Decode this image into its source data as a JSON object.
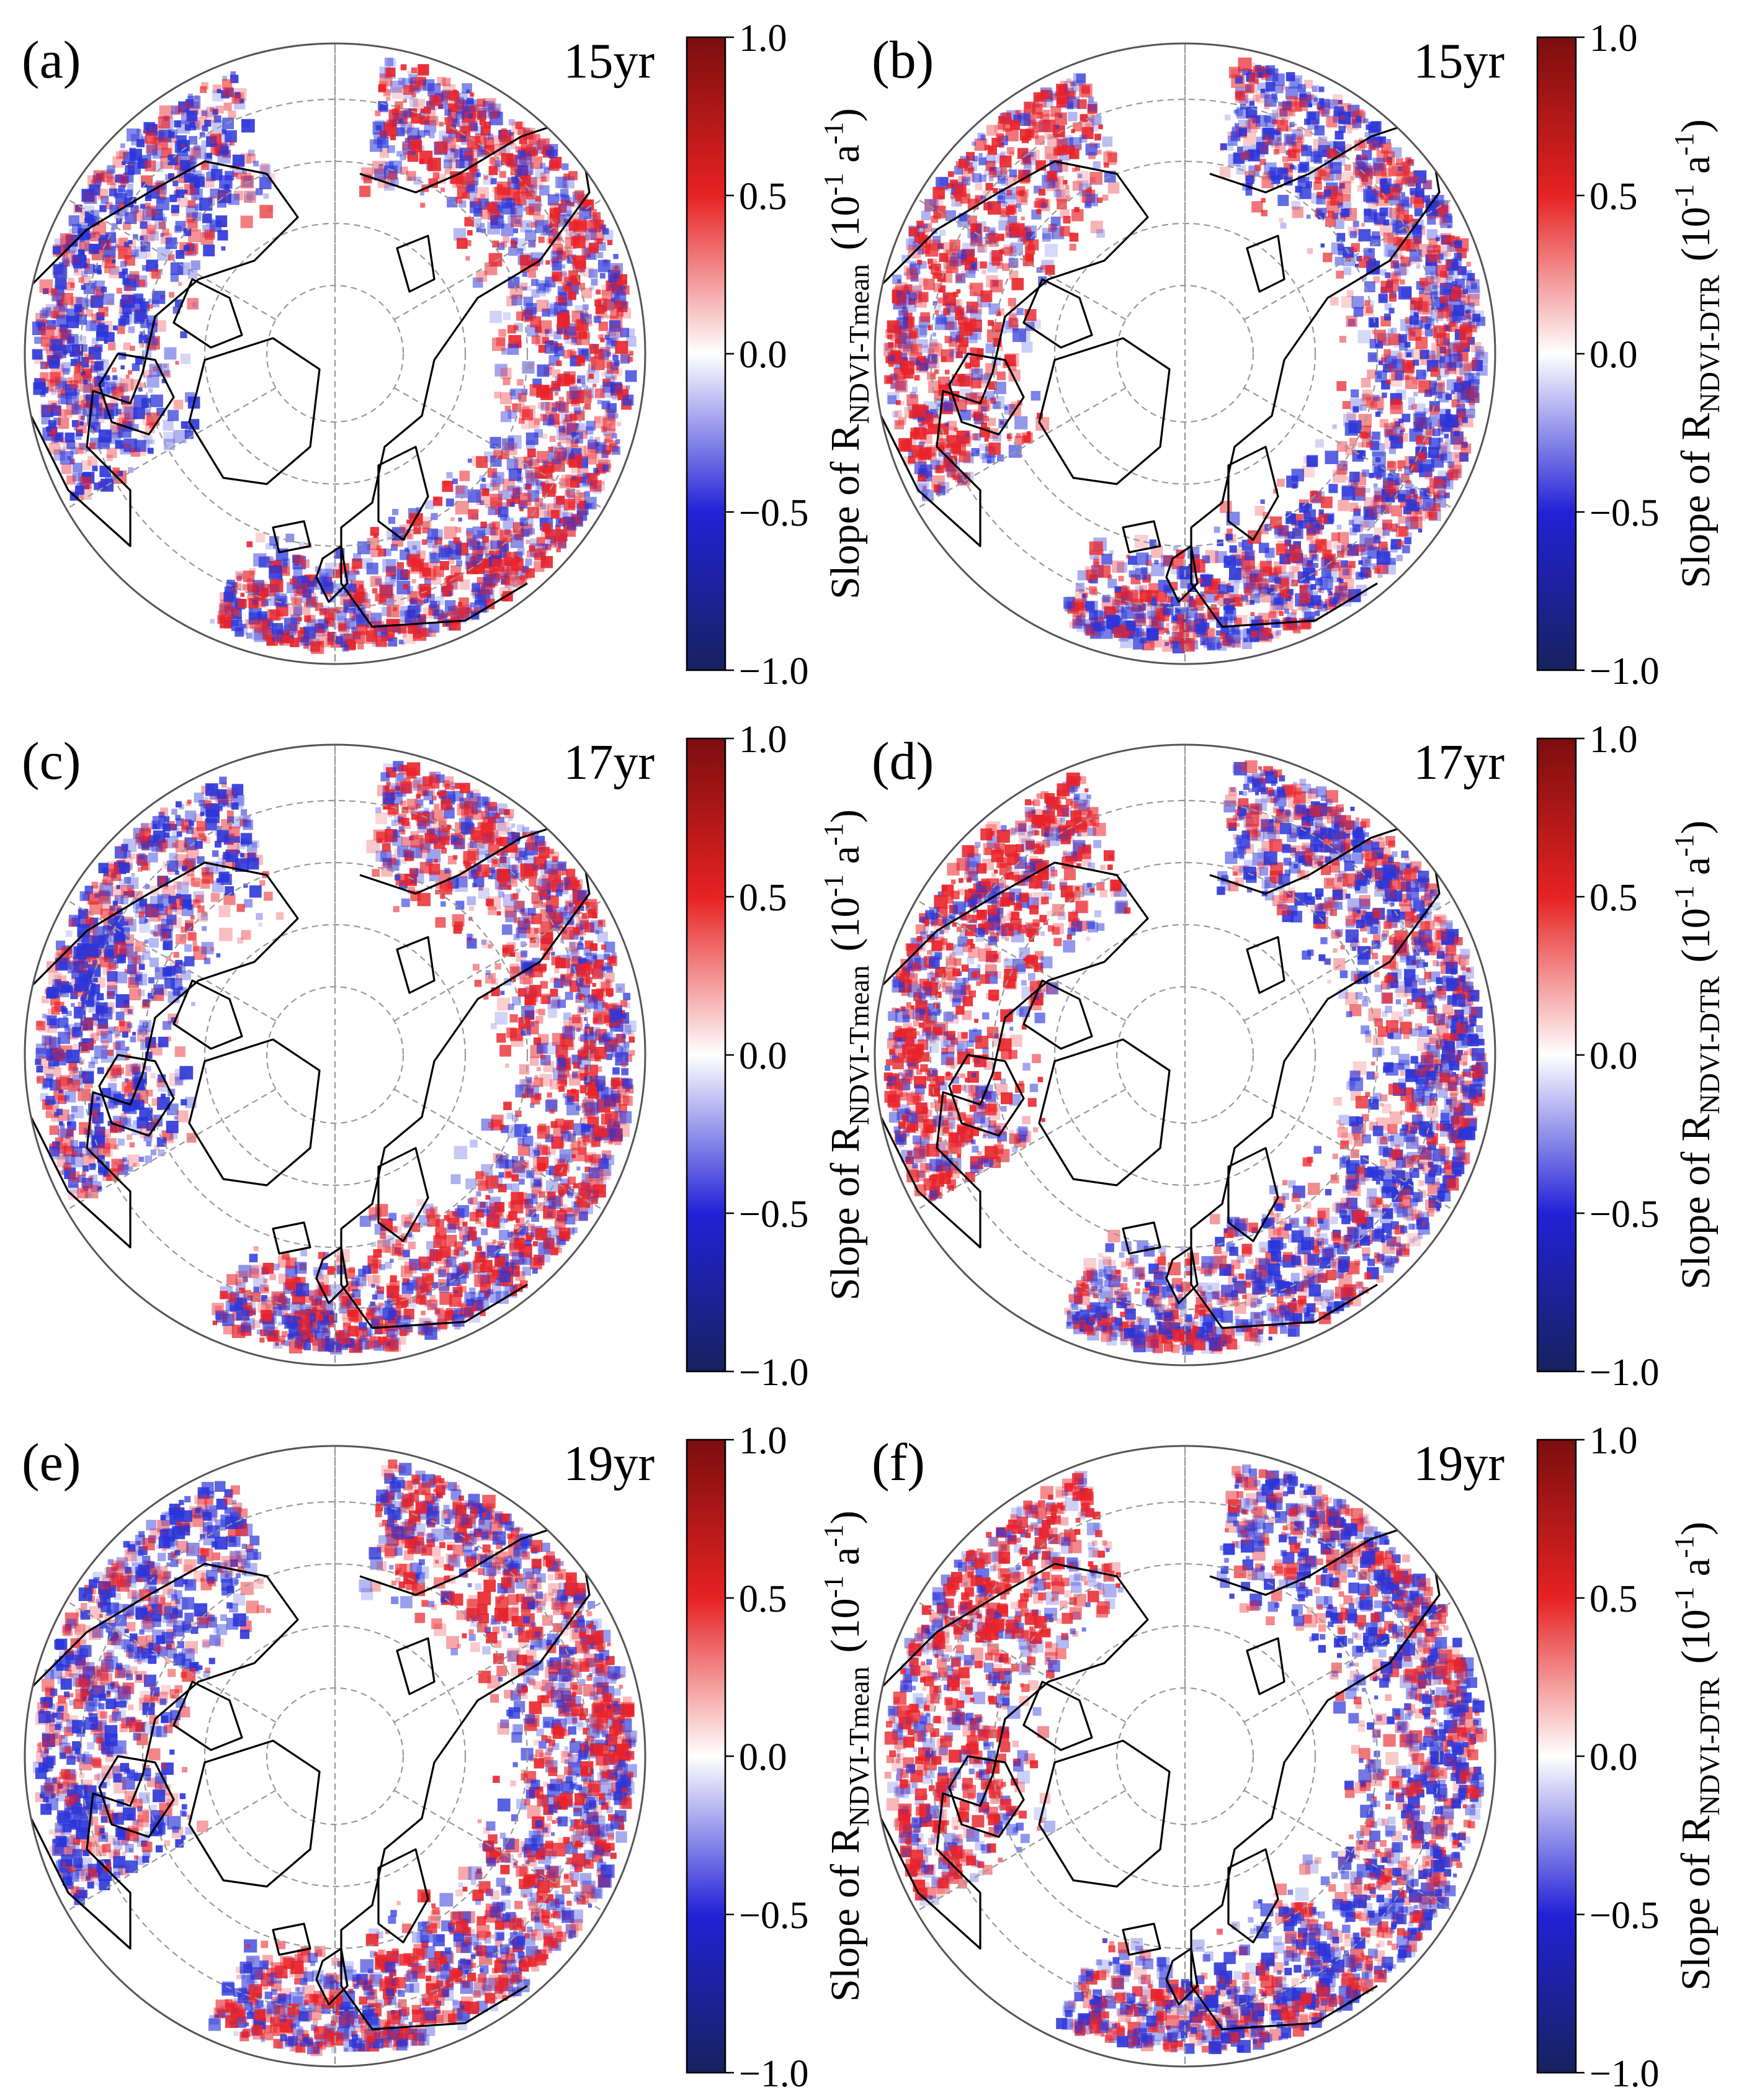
{
  "figure": {
    "colorbar": {
      "ticks": [
        "1.0",
        "0.5",
        "0.0",
        "−0.5",
        "−1.0"
      ],
      "tick_values": [
        1.0,
        0.5,
        0.0,
        -0.5,
        -1.0
      ],
      "range": [
        -1.0,
        1.0
      ],
      "colors": [
        "#16225e",
        "#2222d6",
        "#ffffff",
        "#e62222",
        "#7b0e0e"
      ],
      "label_prefix": "Slope of R",
      "unit_base": "10",
      "unit_exp1": "-1",
      "unit_mid": " a",
      "unit_exp2": "-1",
      "unit_open": "(",
      "unit_close": ")"
    },
    "panels": [
      {
        "letter": "(a)",
        "period": "15yr",
        "subscript": "NDVI-Tmean"
      },
      {
        "letter": "(b)",
        "period": "15yr",
        "subscript": "NDVI-DTR"
      },
      {
        "letter": "(c)",
        "period": "17yr",
        "subscript": "NDVI-Tmean"
      },
      {
        "letter": "(d)",
        "period": "17yr",
        "subscript": "NDVI-DTR"
      },
      {
        "letter": "(e)",
        "period": "19yr",
        "subscript": "NDVI-Tmean"
      },
      {
        "letter": "(f)",
        "period": "19yr",
        "subscript": "NDVI-DTR"
      }
    ],
    "colors": {
      "positive": "#e8232a",
      "negative": "#2b35d8",
      "coastline": "#000000",
      "graticule": "#9a9a9a",
      "frame": "#555555"
    }
  }
}
